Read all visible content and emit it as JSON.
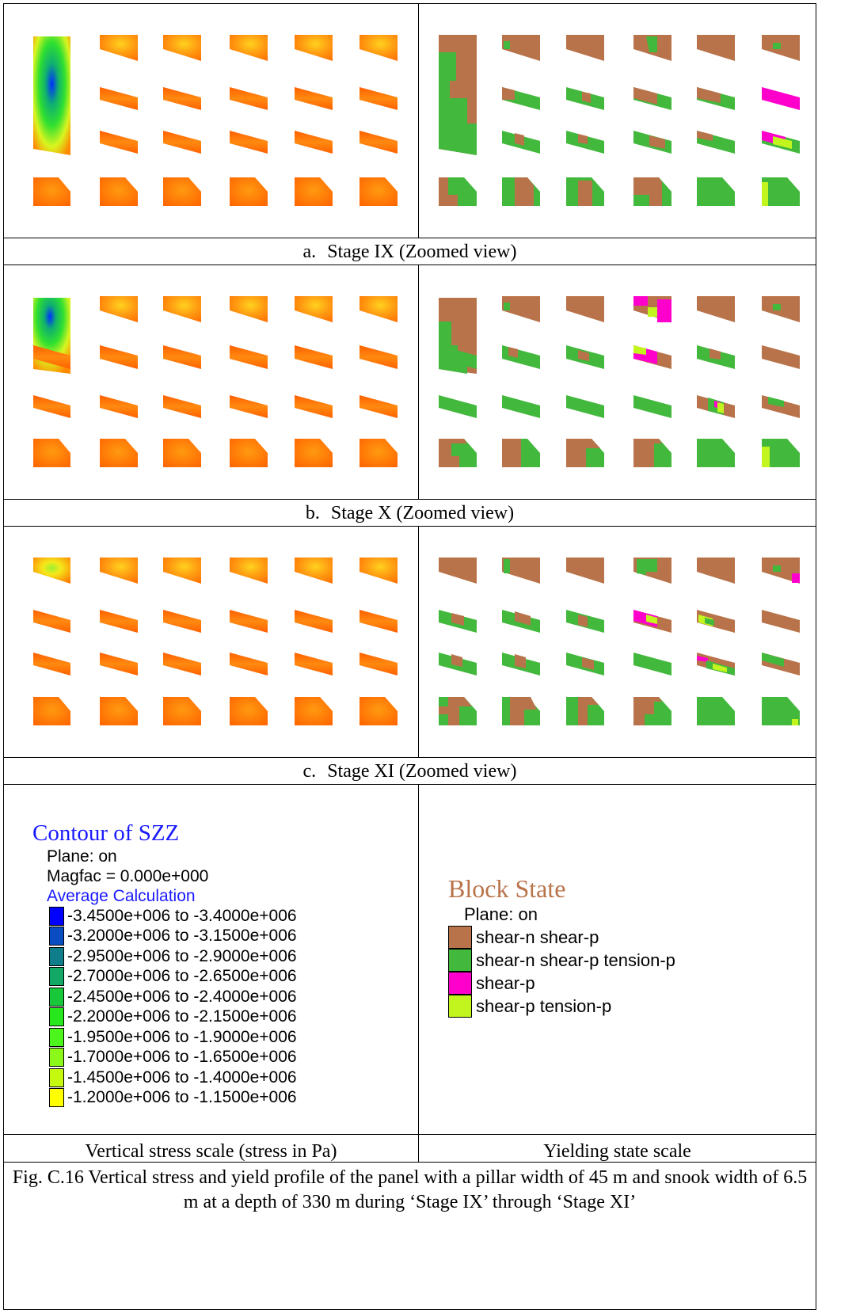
{
  "stages": [
    {
      "letter": "a.",
      "caption": "Stage IX (Zoomed view)"
    },
    {
      "letter": "b.",
      "caption": "Stage X (Zoomed view)"
    },
    {
      "letter": "c.",
      "caption": "Stage XI (Zoomed view)"
    }
  ],
  "stress_legend": {
    "title": "Contour of SZZ",
    "plane": "Plane: on",
    "magfac": "Magfac =  0.000e+000",
    "calc": "Average Calculation",
    "items": [
      {
        "label": "-3.4500e+006 to -3.4000e+006",
        "color": "#0000ff"
      },
      {
        "label": "-3.2000e+006 to -3.1500e+006",
        "color": "#0a4dc2"
      },
      {
        "label": "-2.9500e+006 to -2.9000e+006",
        "color": "#0f7d8a"
      },
      {
        "label": "-2.7000e+006 to -2.6500e+006",
        "color": "#13a865"
      },
      {
        "label": "-2.4500e+006 to -2.4000e+006",
        "color": "#18c83a"
      },
      {
        "label": "-2.2000e+006 to -2.1500e+006",
        "color": "#27e81d"
      },
      {
        "label": "-1.9500e+006 to -1.9000e+006",
        "color": "#4cf51c"
      },
      {
        "label": "-1.7000e+006 to -1.6500e+006",
        "color": "#8bf81a"
      },
      {
        "label": "-1.4500e+006 to -1.4000e+006",
        "color": "#c5f90f"
      },
      {
        "label": "-1.2000e+006 to -1.1500e+006",
        "color": "#ffff00"
      }
    ]
  },
  "block_legend": {
    "title": "Block State",
    "plane": "Plane: on",
    "items": [
      {
        "label": "shear-n shear-p",
        "color": "#b8734a"
      },
      {
        "label": "shear-n shear-p tension-p",
        "color": "#42b83c"
      },
      {
        "label": "shear-p",
        "color": "#ff00cc"
      },
      {
        "label": "shear-p tension-p",
        "color": "#c2f51e"
      }
    ]
  },
  "scale_captions": {
    "left": "Vertical stress scale (stress in Pa)",
    "right": "Yielding state scale"
  },
  "figure_caption": "Fig. C.16 Vertical stress and yield profile of the panel with a pillar width of 45 m and snook width of 6.5 m at a depth of 330 m during ‘Stage IX’ through ‘Stage XI’"
}
